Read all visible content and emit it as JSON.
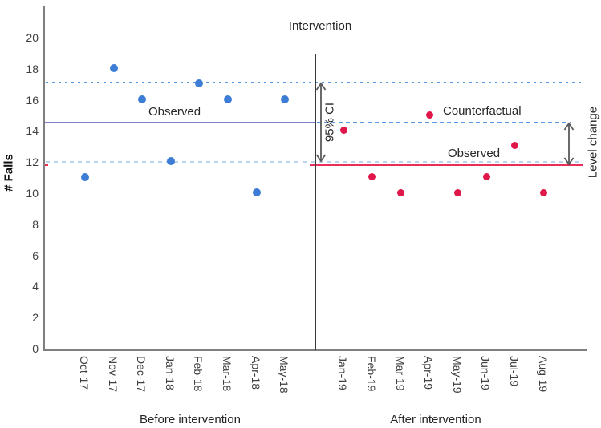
{
  "chart": {
    "title": "Intervention",
    "ylabel": "# Falls",
    "before_group_label": "Before intervention",
    "after_group_label": "After intervention",
    "observed_before_label": "Observed",
    "observed_after_label": "Observed",
    "counterfactual_label": "Counterfactual",
    "ci_label": "95% CI",
    "level_change_label": "Level change"
  },
  "chart_data": {
    "type": "scatter",
    "title": "Intervention",
    "xlabel": "",
    "ylabel": "# Falls",
    "ylim": [
      0,
      20
    ],
    "yticks": [
      0,
      2,
      4,
      6,
      8,
      10,
      12,
      14,
      16,
      18,
      20
    ],
    "grid": false,
    "legend_position": "none",
    "series": [
      {
        "name": "Observed before intervention",
        "color": "#3d7dd6",
        "categories": [
          "Oct-17",
          "Nov-17",
          "Dec-17",
          "Jan-18",
          "Feb-18",
          "Mar-18",
          "Apr-18",
          "May-18"
        ],
        "values": [
          11.1,
          18.1,
          16.1,
          12.1,
          17.1,
          16.1,
          10.1,
          16.1
        ]
      },
      {
        "name": "Observed after intervention",
        "color": "#e0184a",
        "categories": [
          "Jan-19",
          "Feb-19",
          "Mar 19",
          "Apr-19",
          "May-19",
          "Jun-19",
          "Jul-19",
          "Aug-19"
        ],
        "values": [
          14.1,
          11.1,
          10.1,
          15.1,
          10.1,
          11.1,
          13.1,
          10.1
        ]
      }
    ],
    "reference_lines": [
      {
        "name": "observed-mean-before",
        "label": "Observed",
        "value": 14.6,
        "style": "solid",
        "color": "#7c80c9",
        "span": "before"
      },
      {
        "name": "ci-upper",
        "label": "",
        "value": 17.15,
        "style": "dotted",
        "color": "#5597e3",
        "span": "full"
      },
      {
        "name": "ci-lower",
        "label": "",
        "value": 12.05,
        "style": "dashed-light",
        "color": "#b9d4f1",
        "span": "full"
      },
      {
        "name": "counterfactual",
        "label": "Counterfactual",
        "value": 14.6,
        "style": "dashed",
        "color": "#5597e3",
        "span": "after"
      },
      {
        "name": "observed-mean-after",
        "label": "Observed",
        "value": 11.85,
        "style": "solid",
        "color": "#ea2f5b",
        "span": "after-wide"
      }
    ],
    "annotations": [
      {
        "name": "intervention-line",
        "type": "vline",
        "between": [
          "May-18",
          "Jan-19"
        ],
        "label": "Intervention"
      },
      {
        "name": "ci-arrow",
        "type": "double-arrow",
        "label": "95% CI",
        "from": 17.15,
        "to": 12.05
      },
      {
        "name": "level-change-arrow",
        "type": "double-arrow",
        "label": "Level change",
        "from": 14.6,
        "to": 11.85
      }
    ],
    "x_group_labels": [
      "Before intervention",
      "After intervention"
    ]
  },
  "colors": {
    "blue_point": "#3d7dd6",
    "red_point": "#e0184a",
    "purple_line": "#7c80c9",
    "red_line": "#ea2f5b",
    "ci_dotted": "#5597e3",
    "ci_lower_dashed": "#b9d4f1",
    "counterfactual_dashed": "#5597e3",
    "intervention_line": "#3a3a3a",
    "axis": "#7f7f7f",
    "arrow": "#5a5a5a"
  }
}
